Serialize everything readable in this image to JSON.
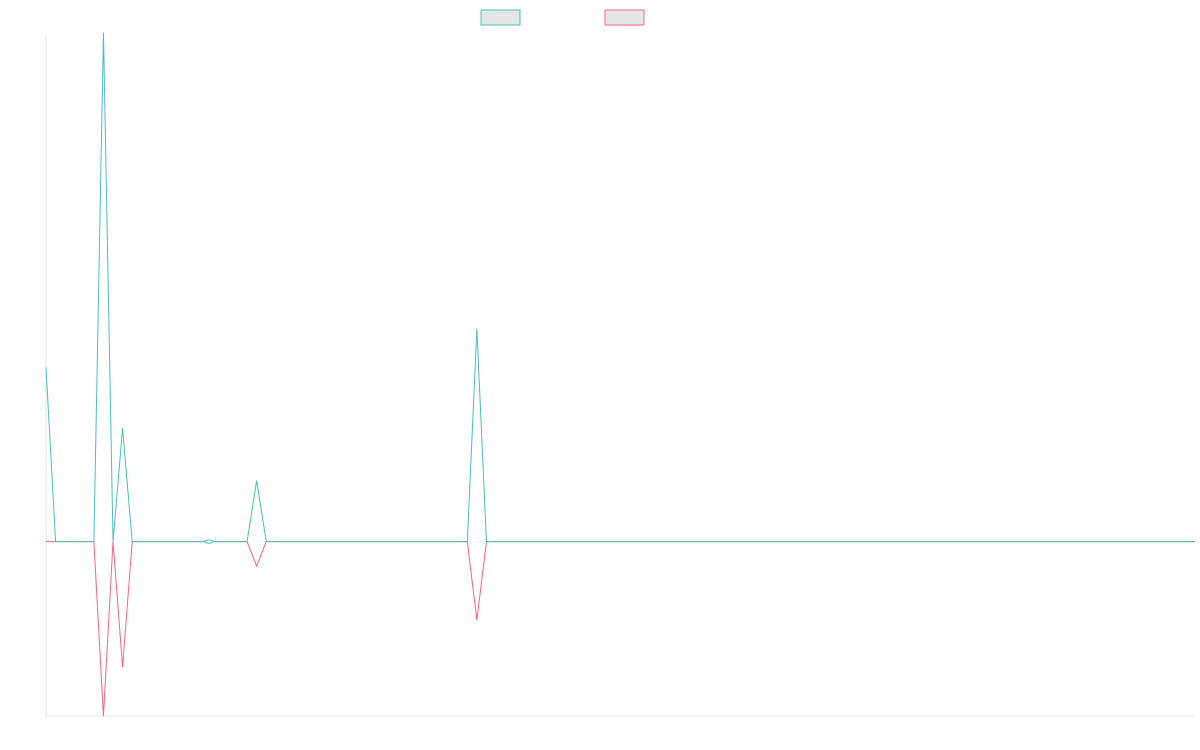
{
  "chart_data": {
    "type": "line",
    "title": "",
    "xlabel": "",
    "ylabel": "",
    "grid": false,
    "legend_placement": "top-center",
    "x_count": 121,
    "y_range": [
      -100,
      290
    ],
    "series": [
      {
        "color": "#4bc0c0",
        "legend_fill": "#e6e6e6",
        "points": [
          [
            0,
            100
          ],
          [
            1,
            0
          ],
          [
            2,
            0
          ],
          [
            3,
            0
          ],
          [
            4,
            0
          ],
          [
            5,
            0
          ],
          [
            6,
            292
          ],
          [
            7,
            0
          ],
          [
            8,
            65
          ],
          [
            9,
            0
          ],
          [
            17,
            0
          ],
          [
            21,
            0
          ],
          [
            22,
            35
          ],
          [
            23,
            0
          ],
          [
            44,
            0
          ],
          [
            45,
            122
          ],
          [
            46,
            0
          ],
          [
            120,
            0
          ]
        ]
      },
      {
        "color": "#ff6384",
        "legend_fill": "#e6e6e6",
        "points": [
          [
            0,
            0
          ],
          [
            1,
            0
          ],
          [
            2,
            0
          ],
          [
            3,
            0
          ],
          [
            4,
            0
          ],
          [
            5,
            0
          ],
          [
            6,
            -100
          ],
          [
            7,
            0
          ],
          [
            8,
            -72
          ],
          [
            9,
            0
          ],
          [
            17,
            0
          ],
          [
            21,
            0
          ],
          [
            22,
            -14
          ],
          [
            23,
            0
          ],
          [
            44,
            0
          ],
          [
            45,
            -45
          ],
          [
            46,
            0
          ],
          [
            120,
            0
          ]
        ]
      }
    ]
  }
}
